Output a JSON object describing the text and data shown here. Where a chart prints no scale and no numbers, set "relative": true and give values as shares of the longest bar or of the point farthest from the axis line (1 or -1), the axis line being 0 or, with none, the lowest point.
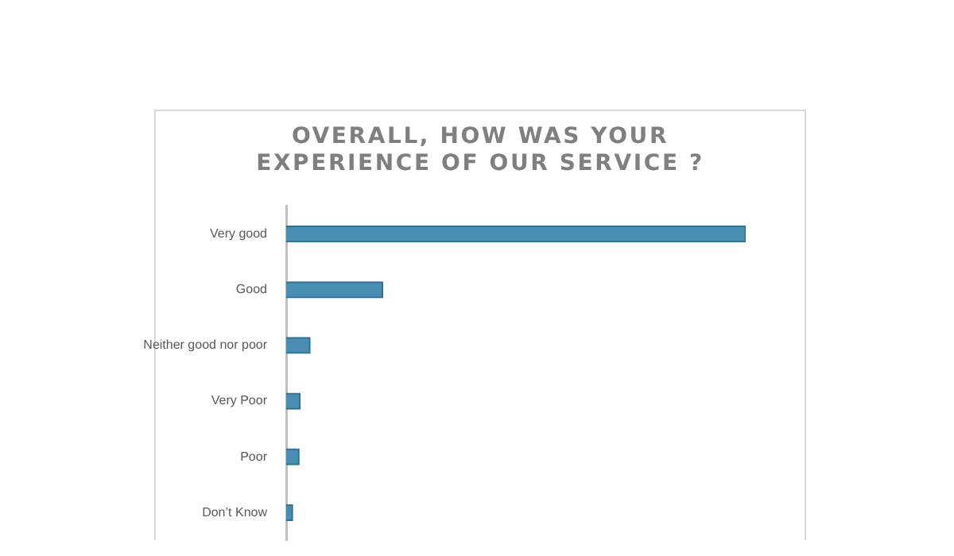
{
  "chart_data": {
    "type": "bar",
    "orientation": "horizontal",
    "relative": true,
    "title": "OVERALL, HOW WAS YOUR EXPERIENCE OF OUR SERVICE ?",
    "categories": [
      "Very good",
      "Good",
      "Neither good nor poor",
      "Very Poor",
      "Poor",
      "Don’t Know"
    ],
    "values": [
      1,
      0.21,
      0.052,
      0.03,
      0.028,
      0.014
    ],
    "color": "#4a8db3",
    "legend": false
  }
}
